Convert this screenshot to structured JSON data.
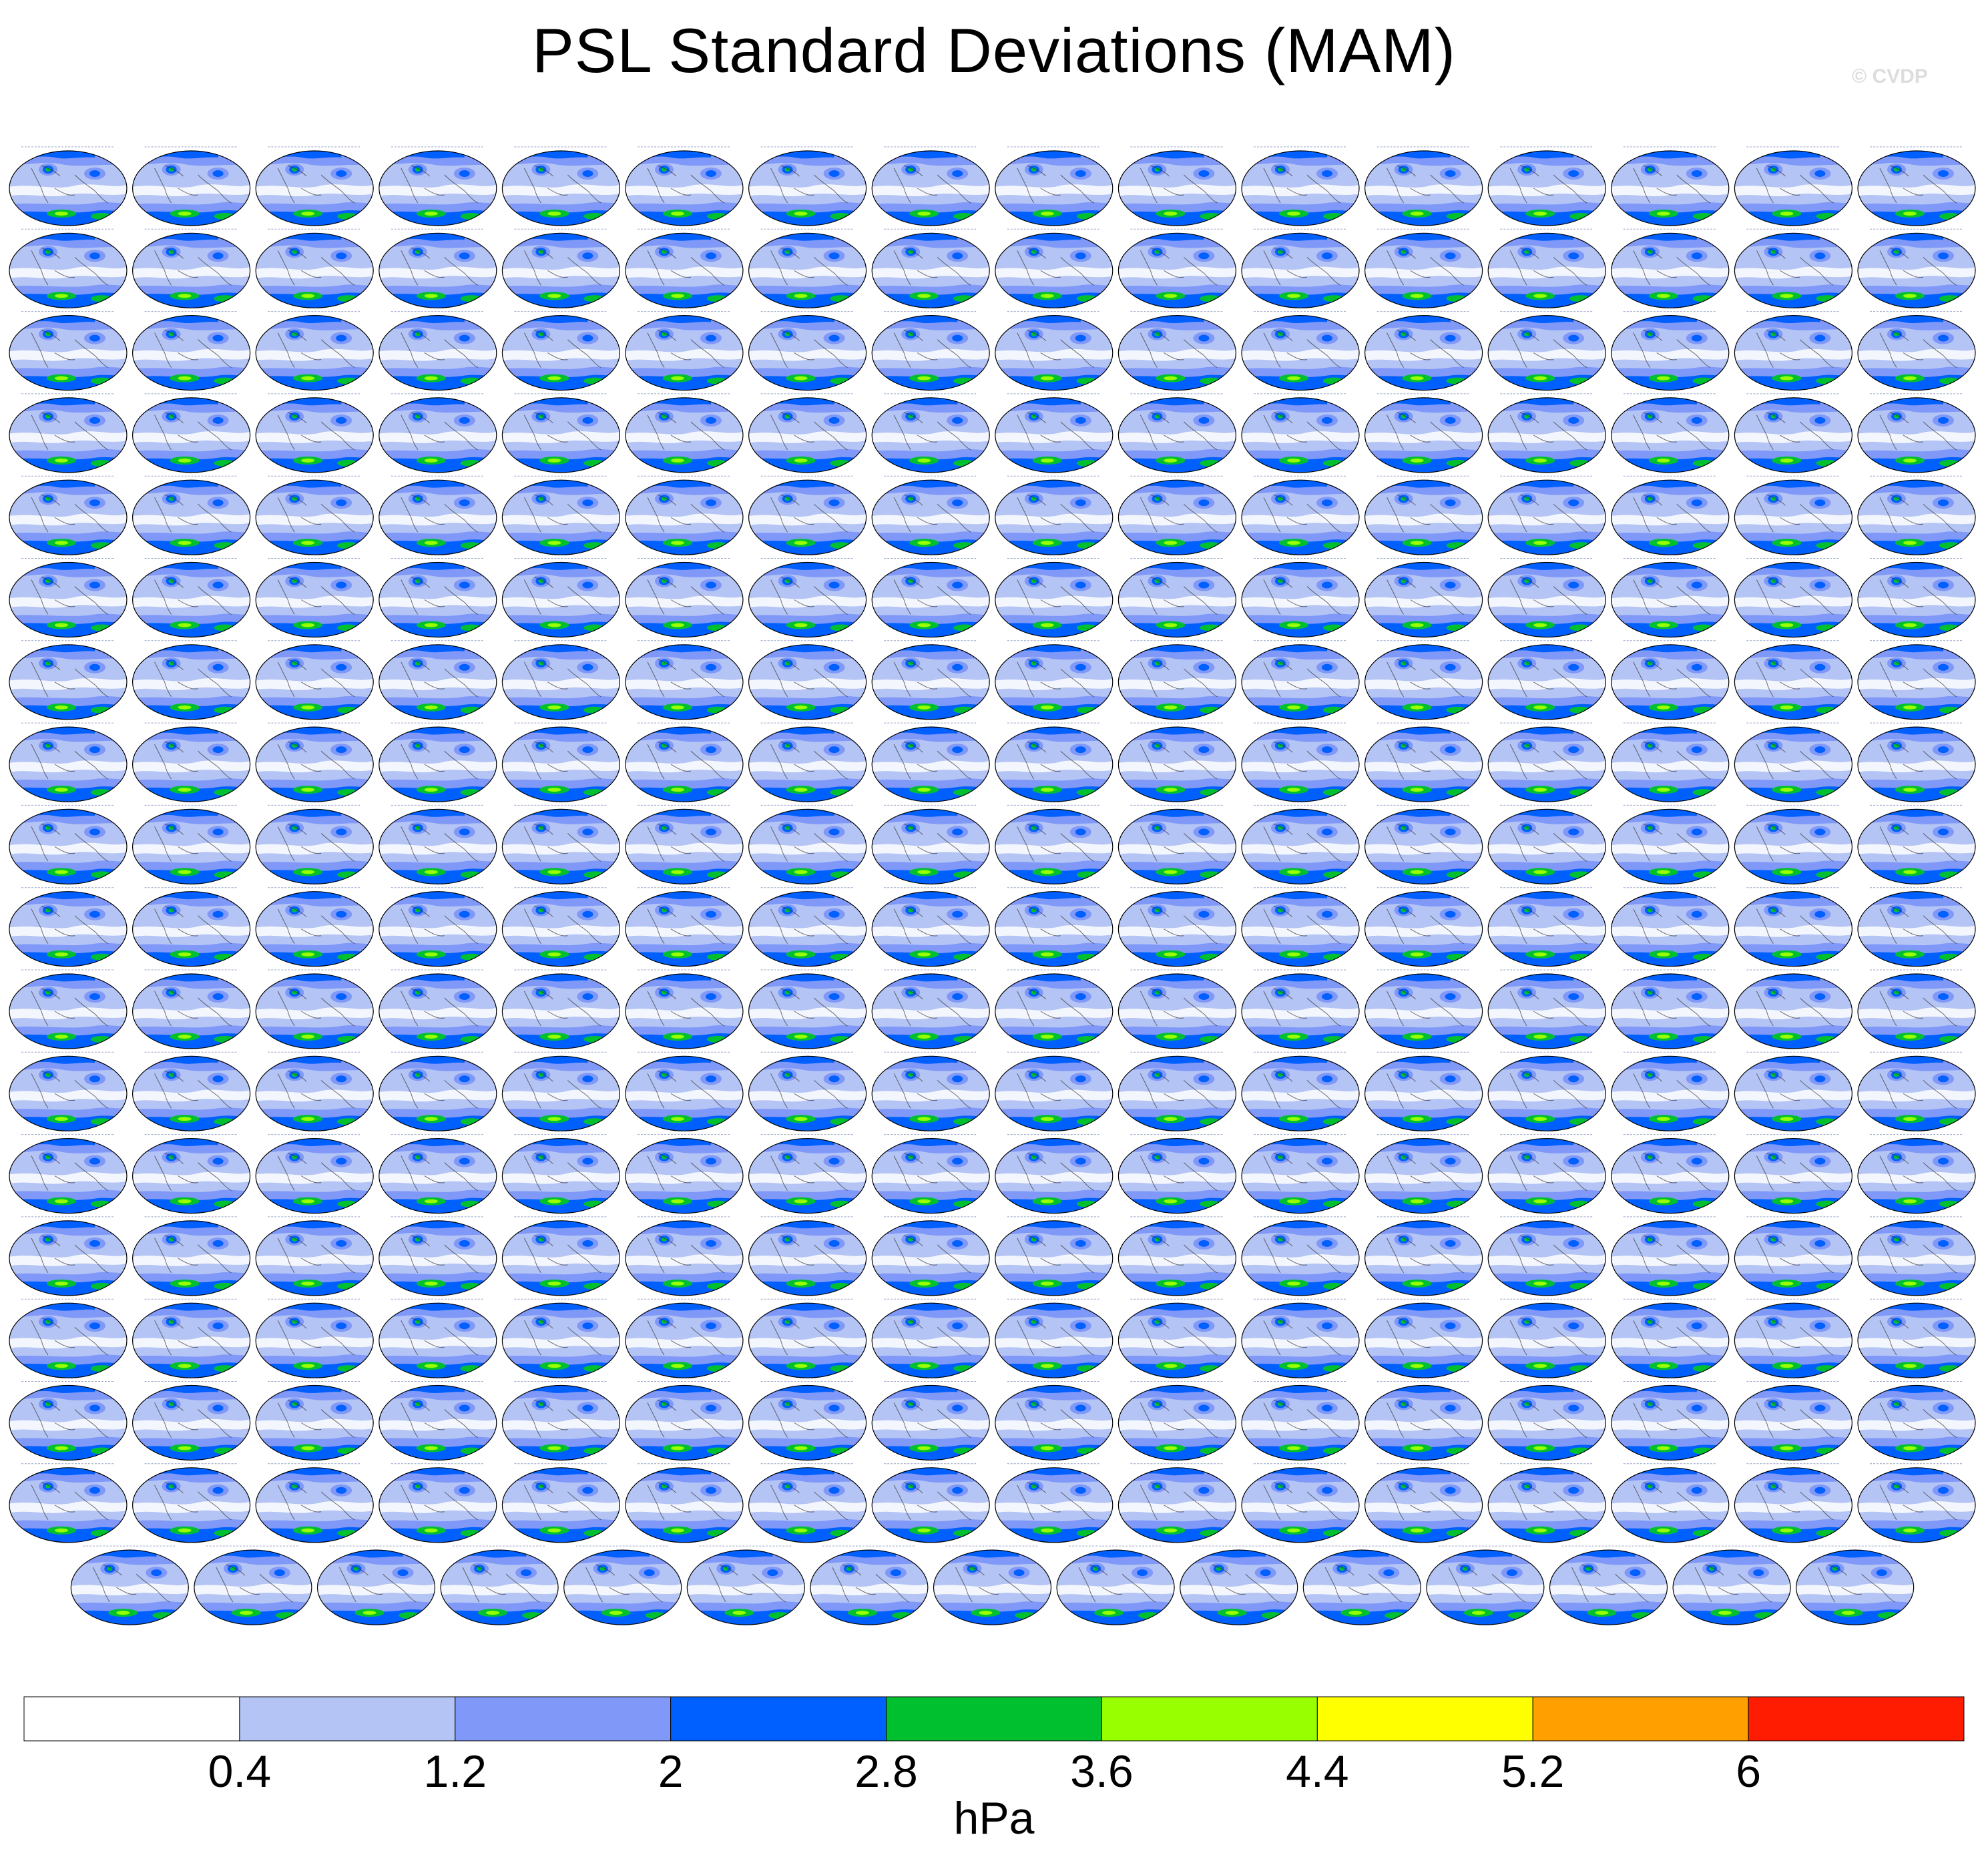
{
  "title": "PSL Standard Deviations (MAM)",
  "watermark": "© CVDP",
  "chart_data": {
    "type": "heatmap",
    "title": "PSL Standard Deviations (MAM)",
    "panel_grid": {
      "rows": 18,
      "columns": 16,
      "last_row_panels": 15,
      "total_panels": 287
    },
    "panel_type": "global map (elliptical projection)",
    "colorbar": {
      "levels": [
        0.4,
        1.2,
        2,
        2.8,
        3.6,
        4.4,
        5.2,
        6
      ],
      "tick_labels": [
        "0.4",
        "1.2",
        "2",
        "2.8",
        "3.6",
        "4.4",
        "5.2",
        "6"
      ],
      "colors": [
        "#ffffff",
        "#b4c4f4",
        "#8098f8",
        "#0060ff",
        "#00c030",
        "#98ff00",
        "#ffff00",
        "#ffa000",
        "#ff1c00"
      ],
      "units": "hPa",
      "orientation": "horizontal",
      "position": "bottom"
    }
  }
}
